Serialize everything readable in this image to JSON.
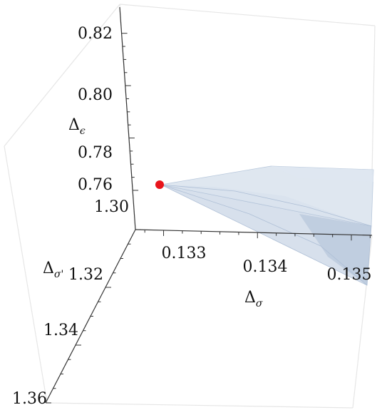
{
  "chart_data": {
    "type": "3d-region",
    "axes": {
      "x": {
        "label": "Δ",
        "label_sub": "σ",
        "ticks": [
          "0.133",
          "0.134",
          "0.135"
        ]
      },
      "y": {
        "label": "Δ",
        "label_sub": "σ'",
        "ticks": [
          "1.30",
          "1.32",
          "1.34",
          "1.36"
        ]
      },
      "z": {
        "label": "Δ",
        "label_sub": "ϵ",
        "ticks": [
          "0.76",
          "0.78",
          "0.80",
          "0.82"
        ]
      }
    },
    "point": {
      "Δσ": 0.1326,
      "Δσ'": 1.3,
      "Δϵ": 0.768
    },
    "region_color": "#c5d3e4",
    "point_color": "#e8141b",
    "box_color": "#e6e6e6"
  }
}
